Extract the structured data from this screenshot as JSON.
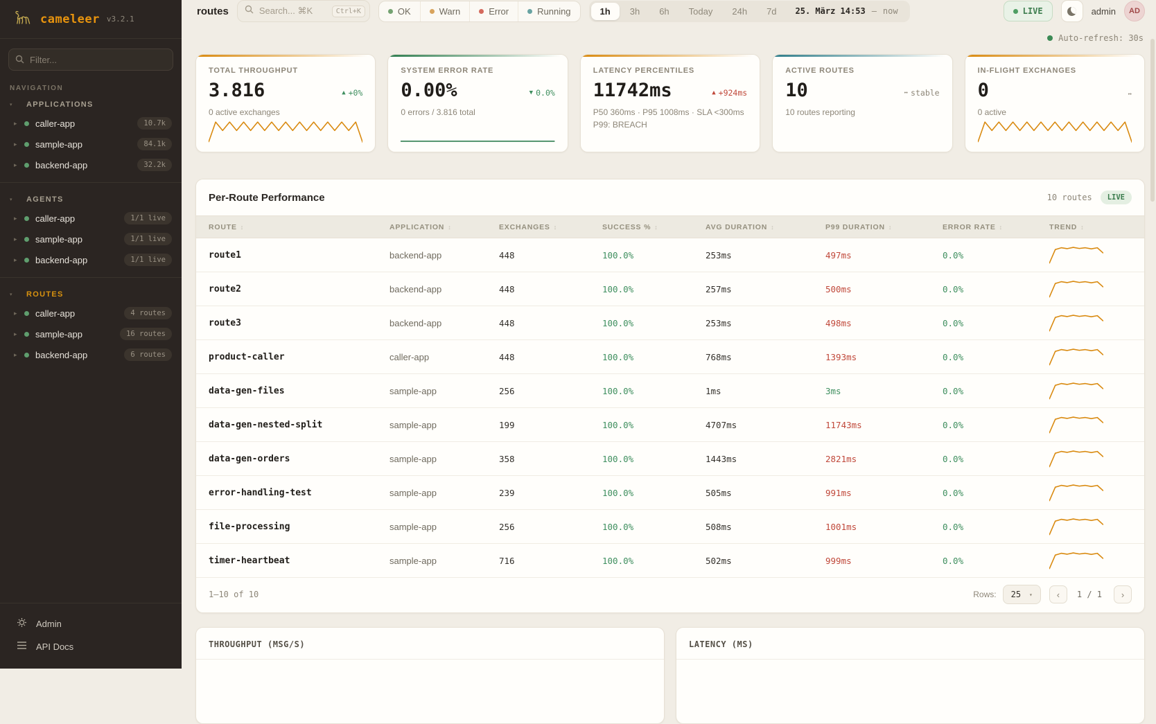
{
  "brand": {
    "name": "cameleer",
    "version": "v3.2.1"
  },
  "sidebar": {
    "filter_placeholder": "Filter...",
    "nav_label": "NAVIGATION",
    "sections": [
      {
        "label": "APPLICATIONS",
        "accent": false,
        "items": [
          {
            "name": "caller-app",
            "badge": "10.7k"
          },
          {
            "name": "sample-app",
            "badge": "84.1k"
          },
          {
            "name": "backend-app",
            "badge": "32.2k"
          }
        ]
      },
      {
        "label": "AGENTS",
        "accent": false,
        "items": [
          {
            "name": "caller-app",
            "badge": "1/1 live"
          },
          {
            "name": "sample-app",
            "badge": "1/1 live"
          },
          {
            "name": "backend-app",
            "badge": "1/1 live"
          }
        ]
      },
      {
        "label": "ROUTES",
        "accent": true,
        "items": [
          {
            "name": "caller-app",
            "badge": "4 routes"
          },
          {
            "name": "sample-app",
            "badge": "16 routes"
          },
          {
            "name": "backend-app",
            "badge": "6 routes"
          }
        ]
      }
    ],
    "footer_links": [
      {
        "label": "Admin",
        "icon": "gear-icon"
      },
      {
        "label": "API Docs",
        "icon": "list-icon"
      }
    ]
  },
  "header": {
    "page_title": "routes",
    "search_placeholder": "Search... ⌘K",
    "search_shortcut": "Ctrl+K",
    "status_filters": [
      {
        "label": "OK",
        "color": "#74a271"
      },
      {
        "label": "Warn",
        "color": "#d8a35c"
      },
      {
        "label": "Error",
        "color": "#d4695c"
      },
      {
        "label": "Running",
        "color": "#68a3a2"
      }
    ],
    "time_ranges": [
      "1h",
      "3h",
      "6h",
      "Today",
      "24h",
      "7d"
    ],
    "selected_range": "1h",
    "date_from": "25. März 14:53",
    "date_separator": "–",
    "date_to": "now",
    "live_label": "LIVE",
    "user_name": "admin",
    "avatar_initials": "AD"
  },
  "auto_refresh": "Auto-refresh: 30s",
  "kpis": [
    {
      "label": "TOTAL THROUGHPUT",
      "value": "3.816",
      "delta_arrow": "▲",
      "delta_text": "+0%",
      "delta_tone": "green",
      "sub": [
        "0 active exchanges"
      ],
      "accent": "#d98a10",
      "spark": "zigzag",
      "spark_color": "#d98a10"
    },
    {
      "label": "SYSTEM ERROR RATE",
      "value": "0.00%",
      "delta_arrow": "▼",
      "delta_text": "0.0%",
      "delta_tone": "green",
      "sub": [
        "0 errors / 3.816 total"
      ],
      "accent": "#2f7d4f",
      "spark": "flat",
      "spark_color": "#2f7d4f"
    },
    {
      "label": "LATENCY PERCENTILES",
      "value": "11742ms",
      "delta_arrow": "▲",
      "delta_text": "+924ms",
      "delta_tone": "red",
      "sub": [
        "P50 360ms · P95 1008ms · SLA <300ms",
        "P99: BREACH"
      ],
      "accent": "#d98a10",
      "spark": "none",
      "spark_color": ""
    },
    {
      "label": "ACTIVE ROUTES",
      "value": "10",
      "delta_arrow": "↔",
      "delta_text": "stable",
      "delta_tone": "muted",
      "sub": [
        "10 routes reporting"
      ],
      "accent": "#2f7d8a",
      "spark": "none",
      "spark_color": ""
    },
    {
      "label": "IN-FLIGHT EXCHANGES",
      "value": "0",
      "delta_arrow": "↔",
      "delta_text": "",
      "delta_tone": "muted",
      "sub": [
        "0 active"
      ],
      "accent": "#d98a10",
      "spark": "zigzag",
      "spark_color": "#d98a10"
    }
  ],
  "sparkline_shapes": {
    "zigzag": [
      0.04,
      0.92,
      0.55,
      0.92,
      0.55,
      0.92,
      0.55,
      0.92,
      0.55,
      0.92,
      0.55,
      0.92,
      0.55,
      0.92,
      0.55,
      0.92,
      0.55,
      0.92,
      0.55,
      0.92,
      0.55,
      0.92,
      0.02
    ],
    "flat": [
      0.08,
      0.08
    ],
    "trend": [
      0.03,
      0.8,
      0.9,
      0.85,
      0.92,
      0.86,
      0.9,
      0.84,
      0.9,
      0.6
    ]
  },
  "table": {
    "title": "Per-Route Performance",
    "routes_count": "10 routes",
    "live_badge": "LIVE",
    "columns": [
      "ROUTE",
      "APPLICATION",
      "EXCHANGES",
      "SUCCESS %",
      "AVG DURATION",
      "P99 DURATION",
      "ERROR RATE",
      "TREND"
    ],
    "rows": [
      {
        "route": "route1",
        "application": "backend-app",
        "exchanges": "448",
        "success": "100.0%",
        "avg": "253ms",
        "p99": "497ms",
        "p99_tone": "red",
        "error_rate": "0.0%"
      },
      {
        "route": "route2",
        "application": "backend-app",
        "exchanges": "448",
        "success": "100.0%",
        "avg": "257ms",
        "p99": "500ms",
        "p99_tone": "red",
        "error_rate": "0.0%"
      },
      {
        "route": "route3",
        "application": "backend-app",
        "exchanges": "448",
        "success": "100.0%",
        "avg": "253ms",
        "p99": "498ms",
        "p99_tone": "red",
        "error_rate": "0.0%"
      },
      {
        "route": "product-caller",
        "application": "caller-app",
        "exchanges": "448",
        "success": "100.0%",
        "avg": "768ms",
        "p99": "1393ms",
        "p99_tone": "red",
        "error_rate": "0.0%"
      },
      {
        "route": "data-gen-files",
        "application": "sample-app",
        "exchanges": "256",
        "success": "100.0%",
        "avg": "1ms",
        "p99": "3ms",
        "p99_tone": "green",
        "error_rate": "0.0%"
      },
      {
        "route": "data-gen-nested-split",
        "application": "sample-app",
        "exchanges": "199",
        "success": "100.0%",
        "avg": "4707ms",
        "p99": "11743ms",
        "p99_tone": "red",
        "error_rate": "0.0%"
      },
      {
        "route": "data-gen-orders",
        "application": "sample-app",
        "exchanges": "358",
        "success": "100.0%",
        "avg": "1443ms",
        "p99": "2821ms",
        "p99_tone": "red",
        "error_rate": "0.0%"
      },
      {
        "route": "error-handling-test",
        "application": "sample-app",
        "exchanges": "239",
        "success": "100.0%",
        "avg": "505ms",
        "p99": "991ms",
        "p99_tone": "red",
        "error_rate": "0.0%"
      },
      {
        "route": "file-processing",
        "application": "sample-app",
        "exchanges": "256",
        "success": "100.0%",
        "avg": "508ms",
        "p99": "1001ms",
        "p99_tone": "red",
        "error_rate": "0.0%"
      },
      {
        "route": "timer-heartbeat",
        "application": "sample-app",
        "exchanges": "716",
        "success": "100.0%",
        "avg": "502ms",
        "p99": "999ms",
        "p99_tone": "red",
        "error_rate": "0.0%"
      }
    ],
    "footer": {
      "range_label": "1–10 of 10",
      "rows_label": "Rows:",
      "rows_value": "25",
      "prev": "‹",
      "page_label": "1 / 1",
      "next": "›"
    }
  },
  "bottom_panels": [
    {
      "title": "THROUGHPUT (MSG/S)"
    },
    {
      "title": "LATENCY (MS)"
    }
  ],
  "colors": {
    "accent_orange": "#d98a10",
    "green": "#3f8f5f",
    "red": "#c0483a",
    "teal": "#2f7d8a",
    "muted": "#8d8678",
    "live_green": "#3c7d4e",
    "sidebar_dot": "#5f9e6e"
  }
}
